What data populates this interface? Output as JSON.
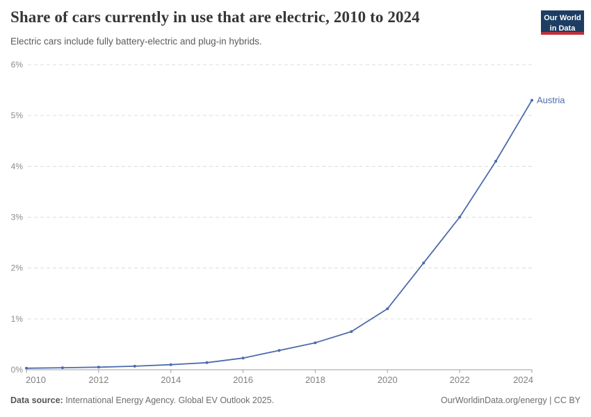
{
  "header": {
    "title": "Share of cars currently in use that are electric, 2010 to 2024",
    "subtitle": "Electric cars include fully battery-electric and plug-in hybrids.",
    "logo": {
      "line1": "Our World",
      "line2": "in Data"
    }
  },
  "chart_data": {
    "type": "line",
    "title": "Share of cars currently in use that are electric, 2010 to 2024",
    "x": [
      2010,
      2011,
      2012,
      2013,
      2014,
      2015,
      2016,
      2017,
      2018,
      2019,
      2020,
      2021,
      2022,
      2023,
      2024
    ],
    "series": [
      {
        "name": "Austria",
        "color": "#4c6bac",
        "values": [
          0.03,
          0.04,
          0.05,
          0.07,
          0.1,
          0.14,
          0.23,
          0.38,
          0.53,
          0.75,
          1.2,
          2.1,
          3.0,
          4.1,
          5.3
        ]
      }
    ],
    "xlabel": "",
    "ylabel": "",
    "xlim": [
      2010,
      2024
    ],
    "ylim": [
      0,
      6
    ],
    "x_ticks": [
      2010,
      2012,
      2014,
      2016,
      2018,
      2020,
      2022,
      2024
    ],
    "y_ticks": [
      0,
      1,
      2,
      3,
      4,
      5,
      6
    ],
    "y_tick_suffix": "%",
    "grid": "horizontal dashed",
    "legend_position": "end-of-line label"
  },
  "footer": {
    "source_bold": "Data source:",
    "source_rest": " International Energy Agency. Global EV Outlook 2025.",
    "credit": "OurWorldinData.org/energy | CC BY"
  },
  "colors": {
    "line_blue": "#4c6bac",
    "logo_navy": "#1d3d63",
    "logo_red": "#c2303b",
    "gridline": "#dcdcdc",
    "axis_line": "#9c9c9c",
    "axis_text": "#8b8b8b"
  }
}
